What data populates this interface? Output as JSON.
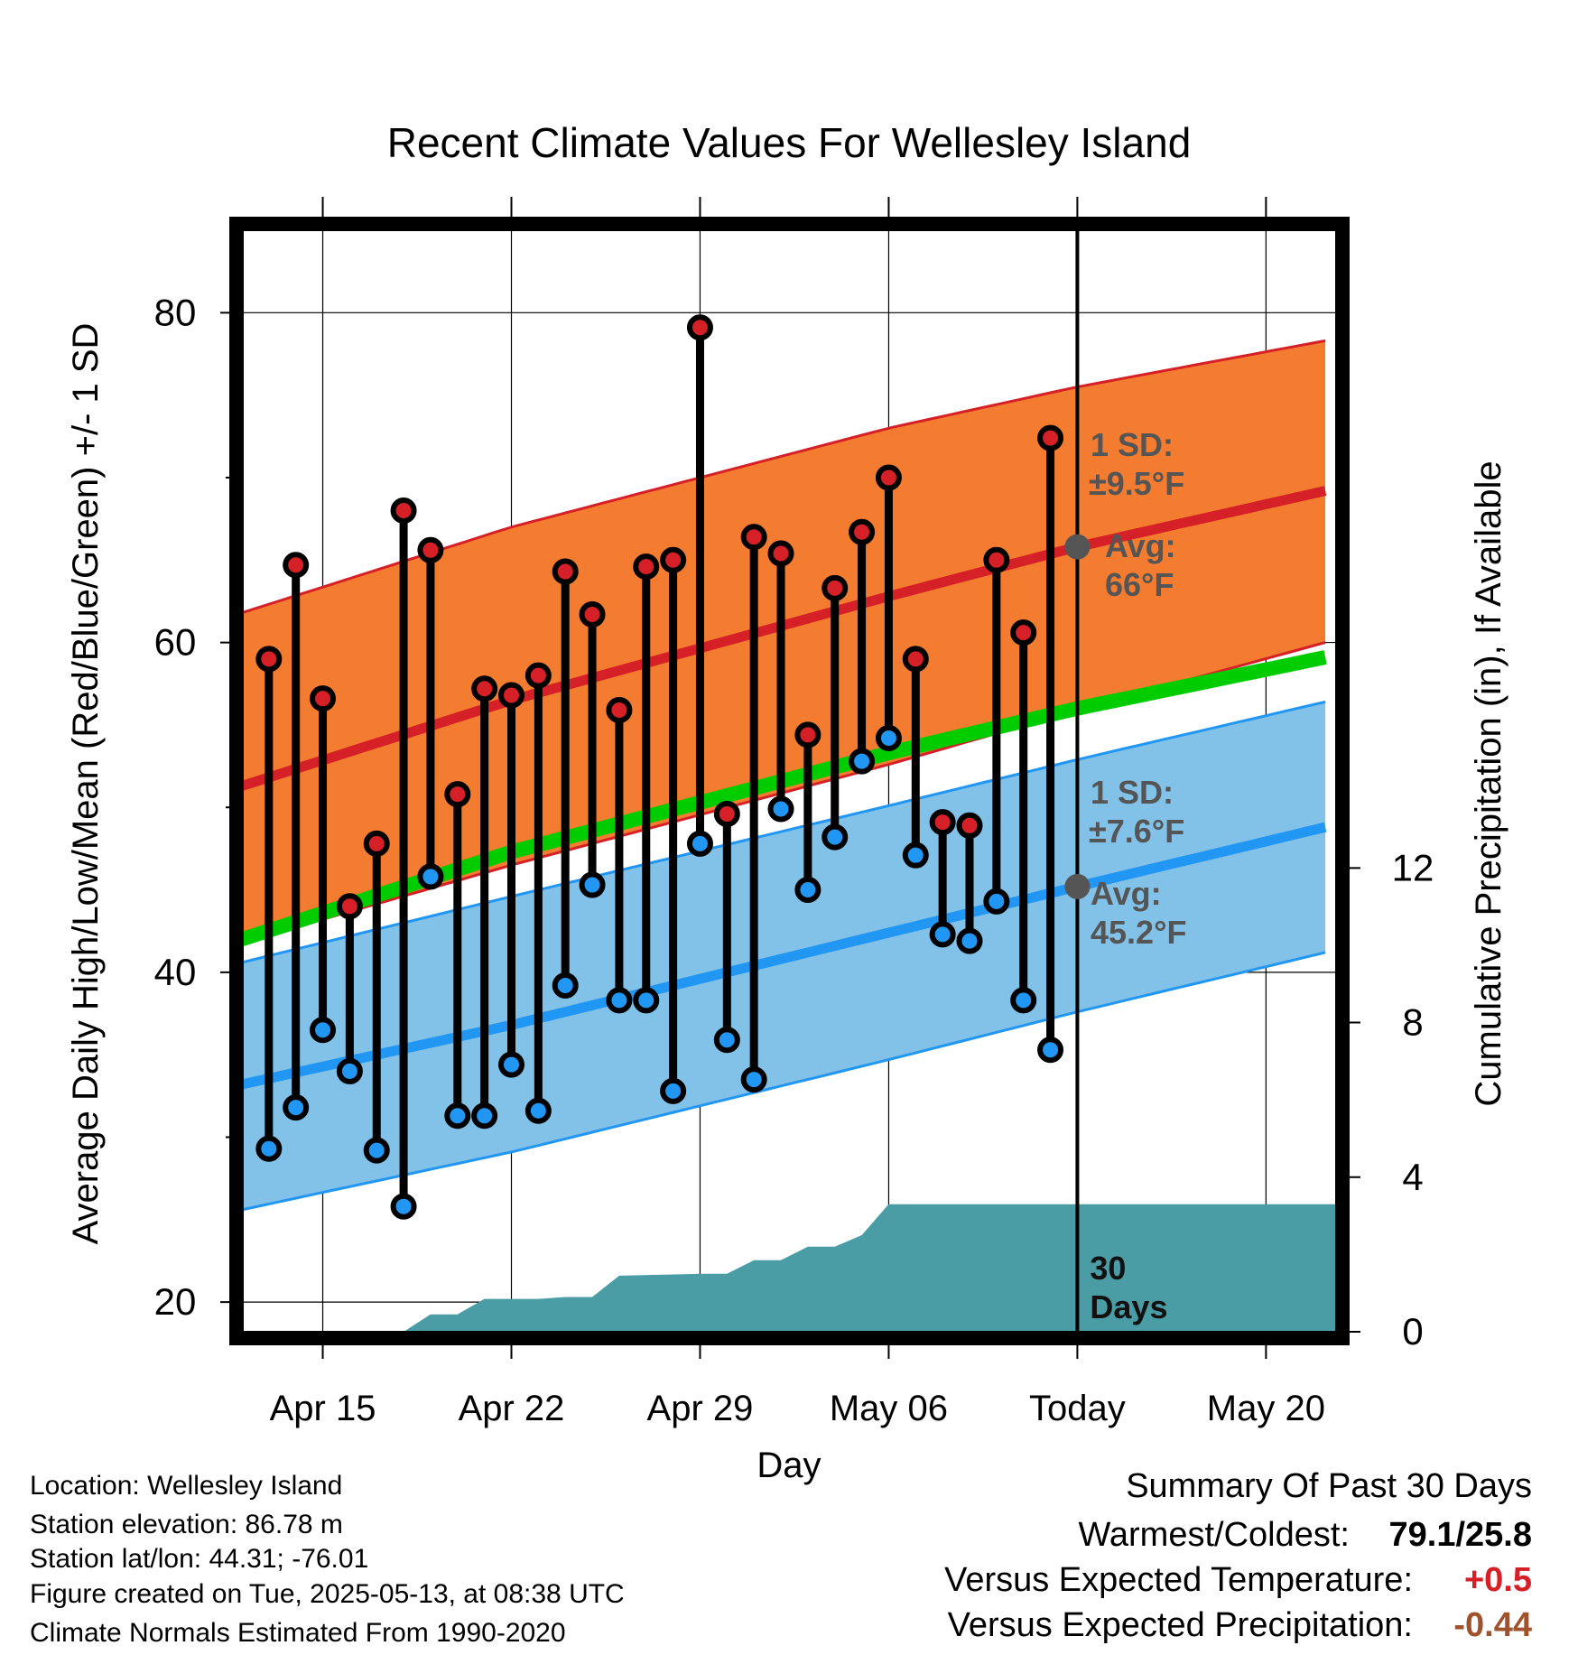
{
  "chart_data": {
    "type": "line",
    "title": "Recent Climate Values For Wellesley Island",
    "xlabel": "Day",
    "ylabel": "Average Daily High/Low/Mean (Red/Blue/Green) +/- 1 SD",
    "y2label": "Cumulative Precipitation (in), If Available",
    "x_ticks": [
      {
        "day": 15,
        "label": "Apr 15"
      },
      {
        "day": 22,
        "label": "Apr 22"
      },
      {
        "day": 29,
        "label": "Apr 29"
      },
      {
        "day": 36,
        "label": "May 06"
      },
      {
        "day": 43,
        "label": "Today"
      },
      {
        "day": 50,
        "label": "May 20"
      }
    ],
    "y_ticks": [
      "20",
      "40",
      "60",
      "80"
    ],
    "y2_ticks": [
      "0",
      "4",
      "8",
      "12"
    ],
    "ylim": [
      18.2,
      85
    ],
    "y2lim": [
      0,
      28.5
    ],
    "xlim": [
      11.8,
      52.6
    ],
    "today_day": 43,
    "window_label": "30 Days",
    "normals": {
      "high_mean": [
        [
          12,
          51.3
        ],
        [
          22,
          56.5
        ],
        [
          36,
          62.8
        ],
        [
          43,
          65.8
        ],
        [
          52.2,
          69.2
        ]
      ],
      "high_upper": [
        [
          12,
          61.8
        ],
        [
          22,
          67.0
        ],
        [
          36,
          73.0
        ],
        [
          43,
          75.5
        ],
        [
          52.2,
          78.3
        ]
      ],
      "high_lower": [
        [
          12,
          41.8
        ],
        [
          22,
          46.5
        ],
        [
          36,
          52.6
        ],
        [
          43,
          55.9
        ],
        [
          52.2,
          60.0
        ]
      ],
      "mean": [
        [
          12,
          42.0
        ],
        [
          22,
          47.3
        ],
        [
          36,
          53.3
        ],
        [
          43,
          56.0
        ],
        [
          52.2,
          59.1
        ]
      ],
      "low_mean": [
        [
          12,
          33.2
        ],
        [
          22,
          36.8
        ],
        [
          36,
          42.4
        ],
        [
          43,
          45.2
        ],
        [
          52.2,
          48.8
        ]
      ],
      "low_upper": [
        [
          12,
          40.6
        ],
        [
          22,
          44.6
        ],
        [
          36,
          50.1
        ],
        [
          43,
          52.9
        ],
        [
          52.2,
          56.4
        ]
      ],
      "low_lower": [
        [
          12,
          25.6
        ],
        [
          22,
          29.1
        ],
        [
          36,
          34.7
        ],
        [
          43,
          37.6
        ],
        [
          52.2,
          41.2
        ]
      ]
    },
    "series": [
      {
        "name": "High",
        "color": "#d62027",
        "values": [
          59.0,
          64.7,
          56.6,
          44.0,
          47.8,
          68.0,
          65.6,
          50.8,
          57.2,
          56.8,
          58.0,
          64.3,
          61.7,
          55.9,
          64.6,
          65.0,
          79.1,
          49.6,
          66.4,
          65.4,
          54.4,
          63.3,
          66.7,
          70.0,
          59.0,
          49.1,
          48.9,
          65.0,
          60.6,
          72.4
        ]
      },
      {
        "name": "Low",
        "color": "#2196f3",
        "values": [
          29.3,
          31.8,
          36.5,
          34.0,
          29.2,
          25.8,
          45.8,
          31.3,
          31.3,
          34.4,
          31.6,
          39.2,
          45.3,
          38.3,
          38.3,
          32.8,
          47.8,
          35.9,
          33.5,
          49.9,
          45.0,
          48.2,
          52.8,
          54.2,
          47.1,
          42.3,
          41.9,
          44.3,
          38.3,
          35.3
        ]
      }
    ],
    "x_days": [
      13,
      14,
      15,
      16,
      17,
      18,
      19,
      20,
      21,
      22,
      23,
      24,
      25,
      26,
      27,
      28,
      29,
      30,
      31,
      32,
      33,
      34,
      35,
      36,
      37,
      38,
      39,
      40,
      41,
      42
    ],
    "precip_cumulative": [
      [
        12,
        0
      ],
      [
        18,
        0
      ],
      [
        19,
        0.45
      ],
      [
        20,
        0.45
      ],
      [
        21,
        0.85
      ],
      [
        23,
        0.85
      ],
      [
        24,
        0.9
      ],
      [
        25,
        0.9
      ],
      [
        26,
        1.45
      ],
      [
        29,
        1.5
      ],
      [
        30,
        1.5
      ],
      [
        31,
        1.85
      ],
      [
        32,
        1.85
      ],
      [
        33,
        2.2
      ],
      [
        34,
        2.2
      ],
      [
        35,
        2.5
      ],
      [
        36,
        3.3
      ],
      [
        52.6,
        3.3
      ]
    ],
    "annotations": {
      "high_sd_title": "1 SD:",
      "high_sd_value": "±9.5°F",
      "high_avg_title": "Avg:",
      "high_avg_value": "66°F",
      "high_avg_point": 65.8,
      "low_sd_title": "1 SD:",
      "low_sd_value": "±7.6°F",
      "low_avg_title": "Avg:",
      "low_avg_value": "45.2°F",
      "low_avg_point": 45.2
    },
    "colors": {
      "high_band": "#f47c30",
      "high_line": "#d62027",
      "mean_line": "#00cc00",
      "low_band": "#82c1e8",
      "low_line": "#2196f3",
      "precip": "#4a9ca5",
      "label_gray": "#555555"
    }
  },
  "info": {
    "location": "Location: Wellesley Island",
    "elevation": "Station elevation: 86.78 m",
    "latlon": "Station lat/lon: 44.31; -76.01",
    "created": "Figure created on Tue, 2025-05-13, at 08:38 UTC",
    "normals": "Climate Normals Estimated From 1990-2020"
  },
  "summary": {
    "title": "Summary Of Past 30 Days",
    "warm_cold_label": "Warmest/Coldest:",
    "warm_cold_value": "79.1/25.8",
    "temp_label": "Versus Expected Temperature:",
    "temp_value": "+0.5",
    "temp_color": "#d62027",
    "precip_label": "Versus Expected Precipitation:",
    "precip_value": "-0.44",
    "precip_color": "#a0522d"
  }
}
